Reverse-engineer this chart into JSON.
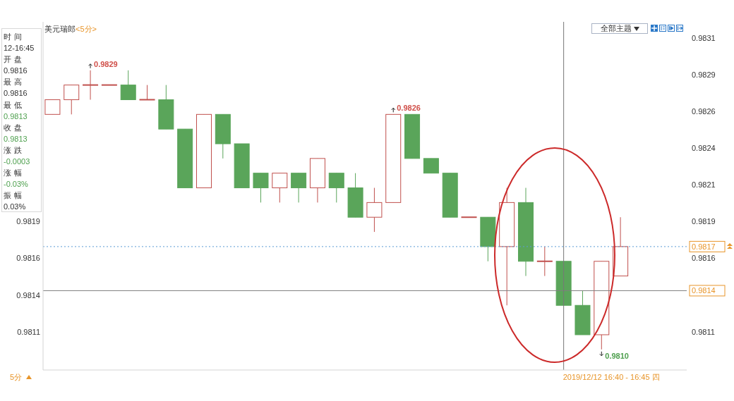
{
  "chart_data": {
    "type": "candlestick",
    "title": "美元瑞郎",
    "subtitle": "<5分>",
    "categories": [
      null,
      null,
      null,
      null,
      null,
      null,
      null,
      null,
      null,
      null,
      null,
      null,
      null,
      null,
      null,
      null,
      null,
      null,
      null,
      null,
      null,
      null,
      null,
      null,
      null,
      null,
      null,
      null,
      null,
      null,
      null,
      null,
      null,
      null
    ],
    "ohlc": [
      [
        0.9826,
        0.9827,
        0.9826,
        0.9827
      ],
      [
        0.9827,
        0.9828,
        0.9826,
        0.9828
      ],
      [
        0.9828,
        0.9829,
        0.9827,
        0.9828
      ],
      [
        0.9828,
        0.9828,
        0.9828,
        0.9828
      ],
      [
        0.9828,
        0.9829,
        0.9827,
        0.9827
      ],
      [
        0.9827,
        0.9828,
        0.9827,
        0.9827
      ],
      [
        0.9827,
        0.9828,
        0.9825,
        0.9825
      ],
      [
        0.9825,
        0.9825,
        0.9821,
        0.9821
      ],
      [
        0.9821,
        0.9826,
        0.9821,
        0.9826
      ],
      [
        0.9826,
        0.9826,
        0.9823,
        0.9824
      ],
      [
        0.9824,
        0.9824,
        0.9821,
        0.9821
      ],
      [
        0.9822,
        0.9822,
        0.982,
        0.9821
      ],
      [
        0.9821,
        0.9822,
        0.982,
        0.9822
      ],
      [
        0.9822,
        0.9822,
        0.982,
        0.9821
      ],
      [
        0.9821,
        0.9823,
        0.982,
        0.9823
      ],
      [
        0.9822,
        0.9822,
        0.982,
        0.9821
      ],
      [
        0.9821,
        0.9822,
        0.9819,
        0.9819
      ],
      [
        0.9819,
        0.9821,
        0.9818,
        0.982
      ],
      [
        0.982,
        0.9826,
        0.982,
        0.9826
      ],
      [
        0.9826,
        0.9826,
        0.9823,
        0.9823
      ],
      [
        0.9823,
        0.9823,
        0.9822,
        0.9822
      ],
      [
        0.9822,
        0.9822,
        0.9819,
        0.9819
      ],
      [
        0.9819,
        0.9819,
        0.9819,
        0.9819
      ],
      [
        0.9819,
        0.9819,
        0.9816,
        0.9817
      ],
      [
        0.9817,
        0.9821,
        0.9813,
        0.982
      ],
      [
        0.982,
        0.9821,
        0.9815,
        0.9816
      ],
      [
        0.9816,
        0.9817,
        0.9815,
        0.9816
      ],
      [
        0.9816,
        0.9816,
        0.9813,
        0.9813
      ],
      [
        0.9813,
        0.9814,
        0.9811,
        0.9811
      ],
      [
        0.9811,
        0.9816,
        0.981,
        0.9816
      ],
      [
        0.9815,
        0.9819,
        0.9815,
        0.9817
      ],
      null,
      null,
      null
    ],
    "colors": [
      "#c0504d",
      "#c0504d",
      "#c0504d",
      "#c0504d",
      "#5aa55a",
      "#c0504d",
      "#5aa55a",
      "#5aa55a",
      "#c0504d",
      "#5aa55a",
      "#5aa55a",
      "#5aa55a",
      "#c0504d",
      "#5aa55a",
      "#c0504d",
      "#5aa55a",
      "#5aa55a",
      "#c0504d",
      "#c0504d",
      "#5aa55a",
      "#5aa55a",
      "#5aa55a",
      "#c0504d",
      "#5aa55a",
      "#c0504d",
      "#5aa55a",
      "#c0504d",
      "#5aa55a",
      "#5aa55a",
      "#c0504d",
      "#c0504d",
      null,
      null,
      null
    ],
    "ylim": [
      0.98086,
      0.98323
    ],
    "yticks": [
      {
        "value": 0.98112,
        "label": "0.9811"
      },
      {
        "value": 0.98137,
        "label": "0.9814"
      },
      {
        "value": 0.98162,
        "label": "0.9816"
      },
      {
        "value": 0.98187,
        "label": "0.9819"
      }
    ],
    "y2lim": [
      0.98086,
      0.98323
    ],
    "y2ticks": [
      {
        "value": 0.98112,
        "label": "0.9811"
      },
      {
        "value": 0.98162,
        "label": "0.9816"
      },
      {
        "value": 0.98187,
        "label": "0.9819"
      },
      {
        "value": 0.98212,
        "label": "0.9821"
      },
      {
        "value": 0.98237,
        "label": "0.9824"
      },
      {
        "value": 0.98262,
        "label": "0.9826"
      },
      {
        "value": 0.98287,
        "label": "0.9829"
      },
      {
        "value": 0.98312,
        "label": "0.9831"
      }
    ],
    "ref_lines": [
      {
        "axis": "y",
        "value": 0.9817,
        "label": "0.9817",
        "color": "#5b9bd5",
        "line_style": "dotted"
      },
      {
        "axis": "y",
        "value": 0.9814,
        "label": "0.9814",
        "color": "#808080",
        "line_style": "solid"
      }
    ],
    "annotations": [
      "时间",
      "12-16:45",
      "开盘",
      "0.9816",
      "最高",
      "0.9816",
      "最低",
      "0.9813",
      "收盘",
      "0.9813",
      "涨跌",
      "-0.0003",
      "涨幅",
      "-0.03%",
      "振幅",
      "0.03%",
      "0.9829",
      "0.9826",
      "0.9810",
      "全部主题",
      "5分",
      "2019/12/12 16:40 - 16:45 四"
    ]
  }
}
